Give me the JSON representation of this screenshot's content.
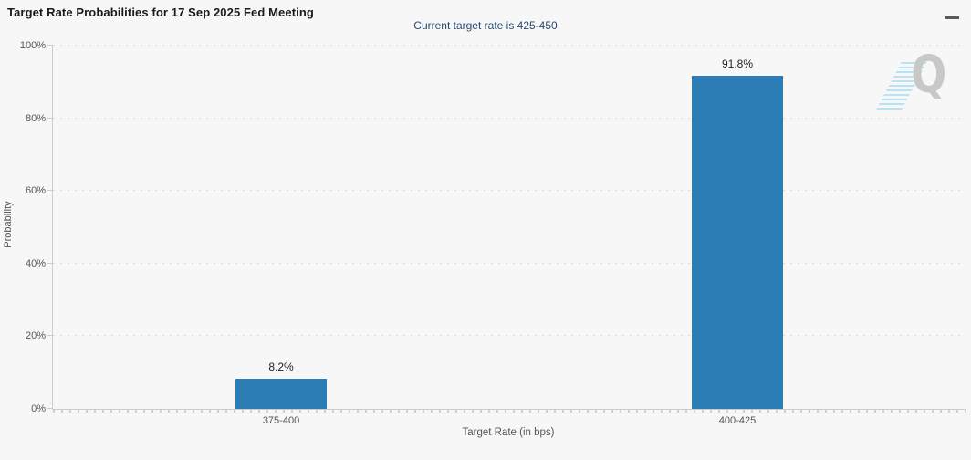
{
  "header": {
    "title": "Target Rate Probabilities for 17 Sep 2025 Fed Meeting",
    "menu_icon": "hamburger-menu-icon"
  },
  "subtitle": "Current target rate is 425-450",
  "watermark": {
    "letter": "Q"
  },
  "chart_data": {
    "type": "bar",
    "title": "Target Rate Probabilities for 17 Sep 2025 Fed Meeting",
    "subtitle": "Current target rate is 425-450",
    "categories": [
      "375-400",
      "400-425"
    ],
    "values": [
      8.2,
      91.8
    ],
    "value_labels": [
      "8.2%",
      "91.8%"
    ],
    "xlabel": "Target Rate (in bps)",
    "ylabel": "Probability",
    "ylim": [
      0,
      100
    ],
    "yticks": [
      0,
      20,
      40,
      60,
      80,
      100
    ],
    "ytick_labels": [
      "0%",
      "20%",
      "40%",
      "60%",
      "80%",
      "100%"
    ],
    "grid": "horizontal-dotted",
    "legend": "none",
    "bar_color": "#2c7cb5"
  },
  "colors": {
    "background": "#f7f7f7",
    "axis_line": "#cccccc",
    "grid_dot": "#dedede",
    "tick_text": "#555555",
    "title_text": "#1a1a1a",
    "subtitle_text": "#2b4a70",
    "bar": "#2c7cb5",
    "value_text": "#222222",
    "watermark_grey": "#c8c8c8",
    "watermark_blue": "#b9e3f5"
  }
}
